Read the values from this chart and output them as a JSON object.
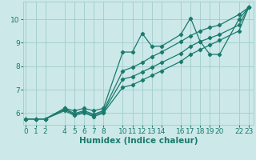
{
  "xlabel": "Humidex (Indice chaleur)",
  "bg_color": "#cce8e8",
  "line_color": "#1a7a6e",
  "grid_color": "#a0cccc",
  "line1_x": [
    0,
    1,
    2,
    4,
    5,
    6,
    7,
    8,
    10,
    11,
    12,
    13,
    14,
    16,
    17,
    18,
    19,
    20,
    22,
    23
  ],
  "line1_y": [
    5.75,
    5.75,
    5.75,
    6.2,
    6.1,
    6.2,
    6.1,
    6.2,
    8.6,
    8.6,
    9.4,
    8.85,
    8.85,
    9.35,
    10.05,
    9.05,
    8.5,
    8.5,
    10.0,
    10.5
  ],
  "line2_x": [
    0,
    1,
    2,
    4,
    5,
    6,
    7,
    8,
    10,
    11,
    12,
    13,
    14,
    16,
    17,
    18,
    19,
    20,
    22,
    23
  ],
  "line2_y": [
    5.75,
    5.75,
    5.75,
    6.2,
    5.98,
    6.1,
    5.95,
    6.1,
    7.8,
    7.95,
    8.15,
    8.4,
    8.6,
    9.05,
    9.3,
    9.5,
    9.65,
    9.75,
    10.2,
    10.5
  ],
  "line3_x": [
    0,
    1,
    2,
    4,
    5,
    6,
    7,
    8,
    10,
    11,
    12,
    13,
    14,
    16,
    17,
    18,
    19,
    20,
    22,
    23
  ],
  "line3_y": [
    5.75,
    5.75,
    5.75,
    6.15,
    5.95,
    6.05,
    5.9,
    6.05,
    7.45,
    7.55,
    7.75,
    7.95,
    8.15,
    8.55,
    8.85,
    9.05,
    9.2,
    9.35,
    9.75,
    10.5
  ],
  "line4_x": [
    0,
    1,
    2,
    4,
    5,
    6,
    7,
    8,
    10,
    11,
    12,
    13,
    14,
    16,
    17,
    18,
    19,
    20,
    22,
    23
  ],
  "line4_y": [
    5.75,
    5.75,
    5.75,
    6.1,
    5.9,
    6.0,
    5.85,
    6.0,
    7.1,
    7.2,
    7.4,
    7.6,
    7.8,
    8.2,
    8.5,
    8.7,
    8.9,
    9.1,
    9.5,
    10.5
  ],
  "xticks": [
    0,
    1,
    2,
    4,
    5,
    6,
    7,
    8,
    10,
    11,
    12,
    13,
    14,
    16,
    17,
    18,
    19,
    20,
    22,
    23
  ],
  "yticks": [
    6,
    7,
    8,
    9,
    10
  ],
  "ylim": [
    5.5,
    10.75
  ],
  "xlim": [
    -0.3,
    23.5
  ],
  "font_size": 6.5,
  "label_fontsize": 7.5
}
